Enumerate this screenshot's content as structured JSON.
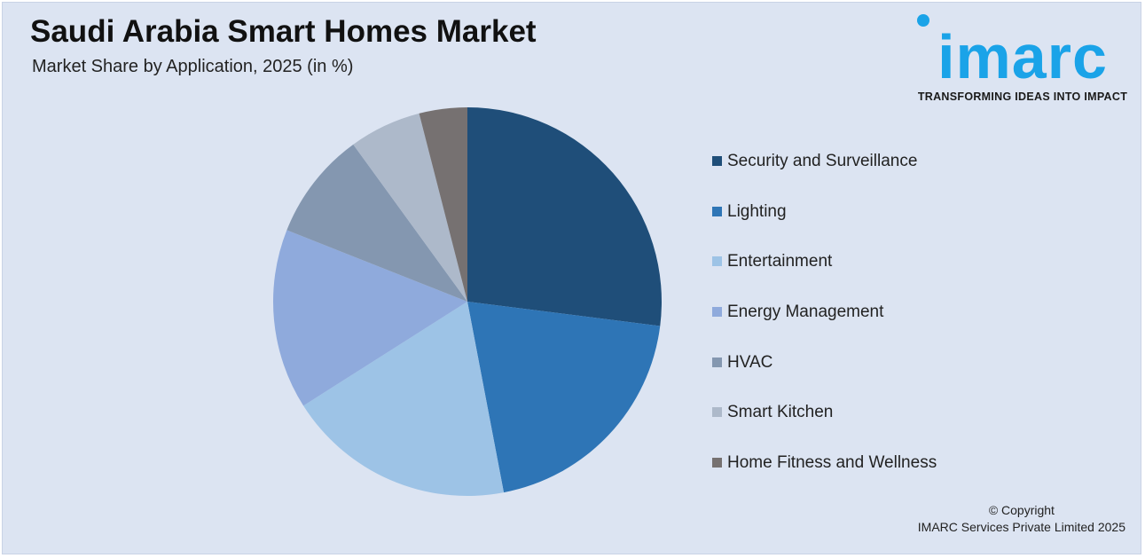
{
  "header": {
    "title": "Saudi Arabia Smart Homes Market",
    "subtitle": "Market Share by Application, 2025 (in %)"
  },
  "logo": {
    "wordmark": "imarc",
    "tagline": "TRANSFORMING IDEAS INTO IMPACT",
    "color": "#1aa3e8"
  },
  "chart_data": {
    "type": "pie",
    "title": "Saudi Arabia Smart Homes Market",
    "subtitle": "Market Share by Application, 2025 (in %)",
    "legend_position": "right",
    "start_angle_deg": 0,
    "direction": "clockwise",
    "slices": [
      {
        "label": "Security and Surveillance",
        "value": 27,
        "color": "#1f4e79"
      },
      {
        "label": "Lighting",
        "value": 20,
        "color": "#2e75b6"
      },
      {
        "label": "Entertainment",
        "value": 19,
        "color": "#9dc3e6"
      },
      {
        "label": "Energy Management",
        "value": 15,
        "color": "#8faadc"
      },
      {
        "label": "HVAC",
        "value": 9,
        "color": "#8497b0"
      },
      {
        "label": "Smart Kitchen",
        "value": 6,
        "color": "#adb9ca"
      },
      {
        "label": "Home Fitness and Wellness",
        "value": 4,
        "color": "#767171"
      }
    ]
  },
  "footer": {
    "copyright_line1": "© Copyright",
    "copyright_line2": "IMARC Services Private Limited 2025"
  }
}
